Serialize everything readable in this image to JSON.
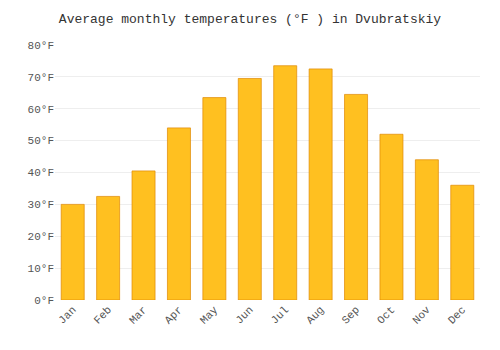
{
  "chart_data": {
    "type": "bar",
    "title": "Average monthly temperatures (°F ) in Dvubratskiy",
    "categories": [
      "Jan",
      "Feb",
      "Mar",
      "Apr",
      "May",
      "Jun",
      "Jul",
      "Aug",
      "Sep",
      "Oct",
      "Nov",
      "Dec"
    ],
    "values": [
      30,
      32.5,
      40.5,
      54,
      63.5,
      69.5,
      73.5,
      72.5,
      64.5,
      52,
      44,
      36
    ],
    "color": "#FFC020",
    "ylim": [
      0,
      80
    ],
    "yticks": [
      {
        "value": 0,
        "label": "0°F"
      },
      {
        "value": 10,
        "label": "10°F"
      },
      {
        "value": 20,
        "label": "20°F"
      },
      {
        "value": 30,
        "label": "30°F"
      },
      {
        "value": 40,
        "label": "40°F"
      },
      {
        "value": 50,
        "label": "50°F"
      },
      {
        "value": 60,
        "label": "60°F"
      },
      {
        "value": 70,
        "label": "70°F"
      },
      {
        "value": 80,
        "label": "80°F"
      }
    ],
    "grid": true
  }
}
